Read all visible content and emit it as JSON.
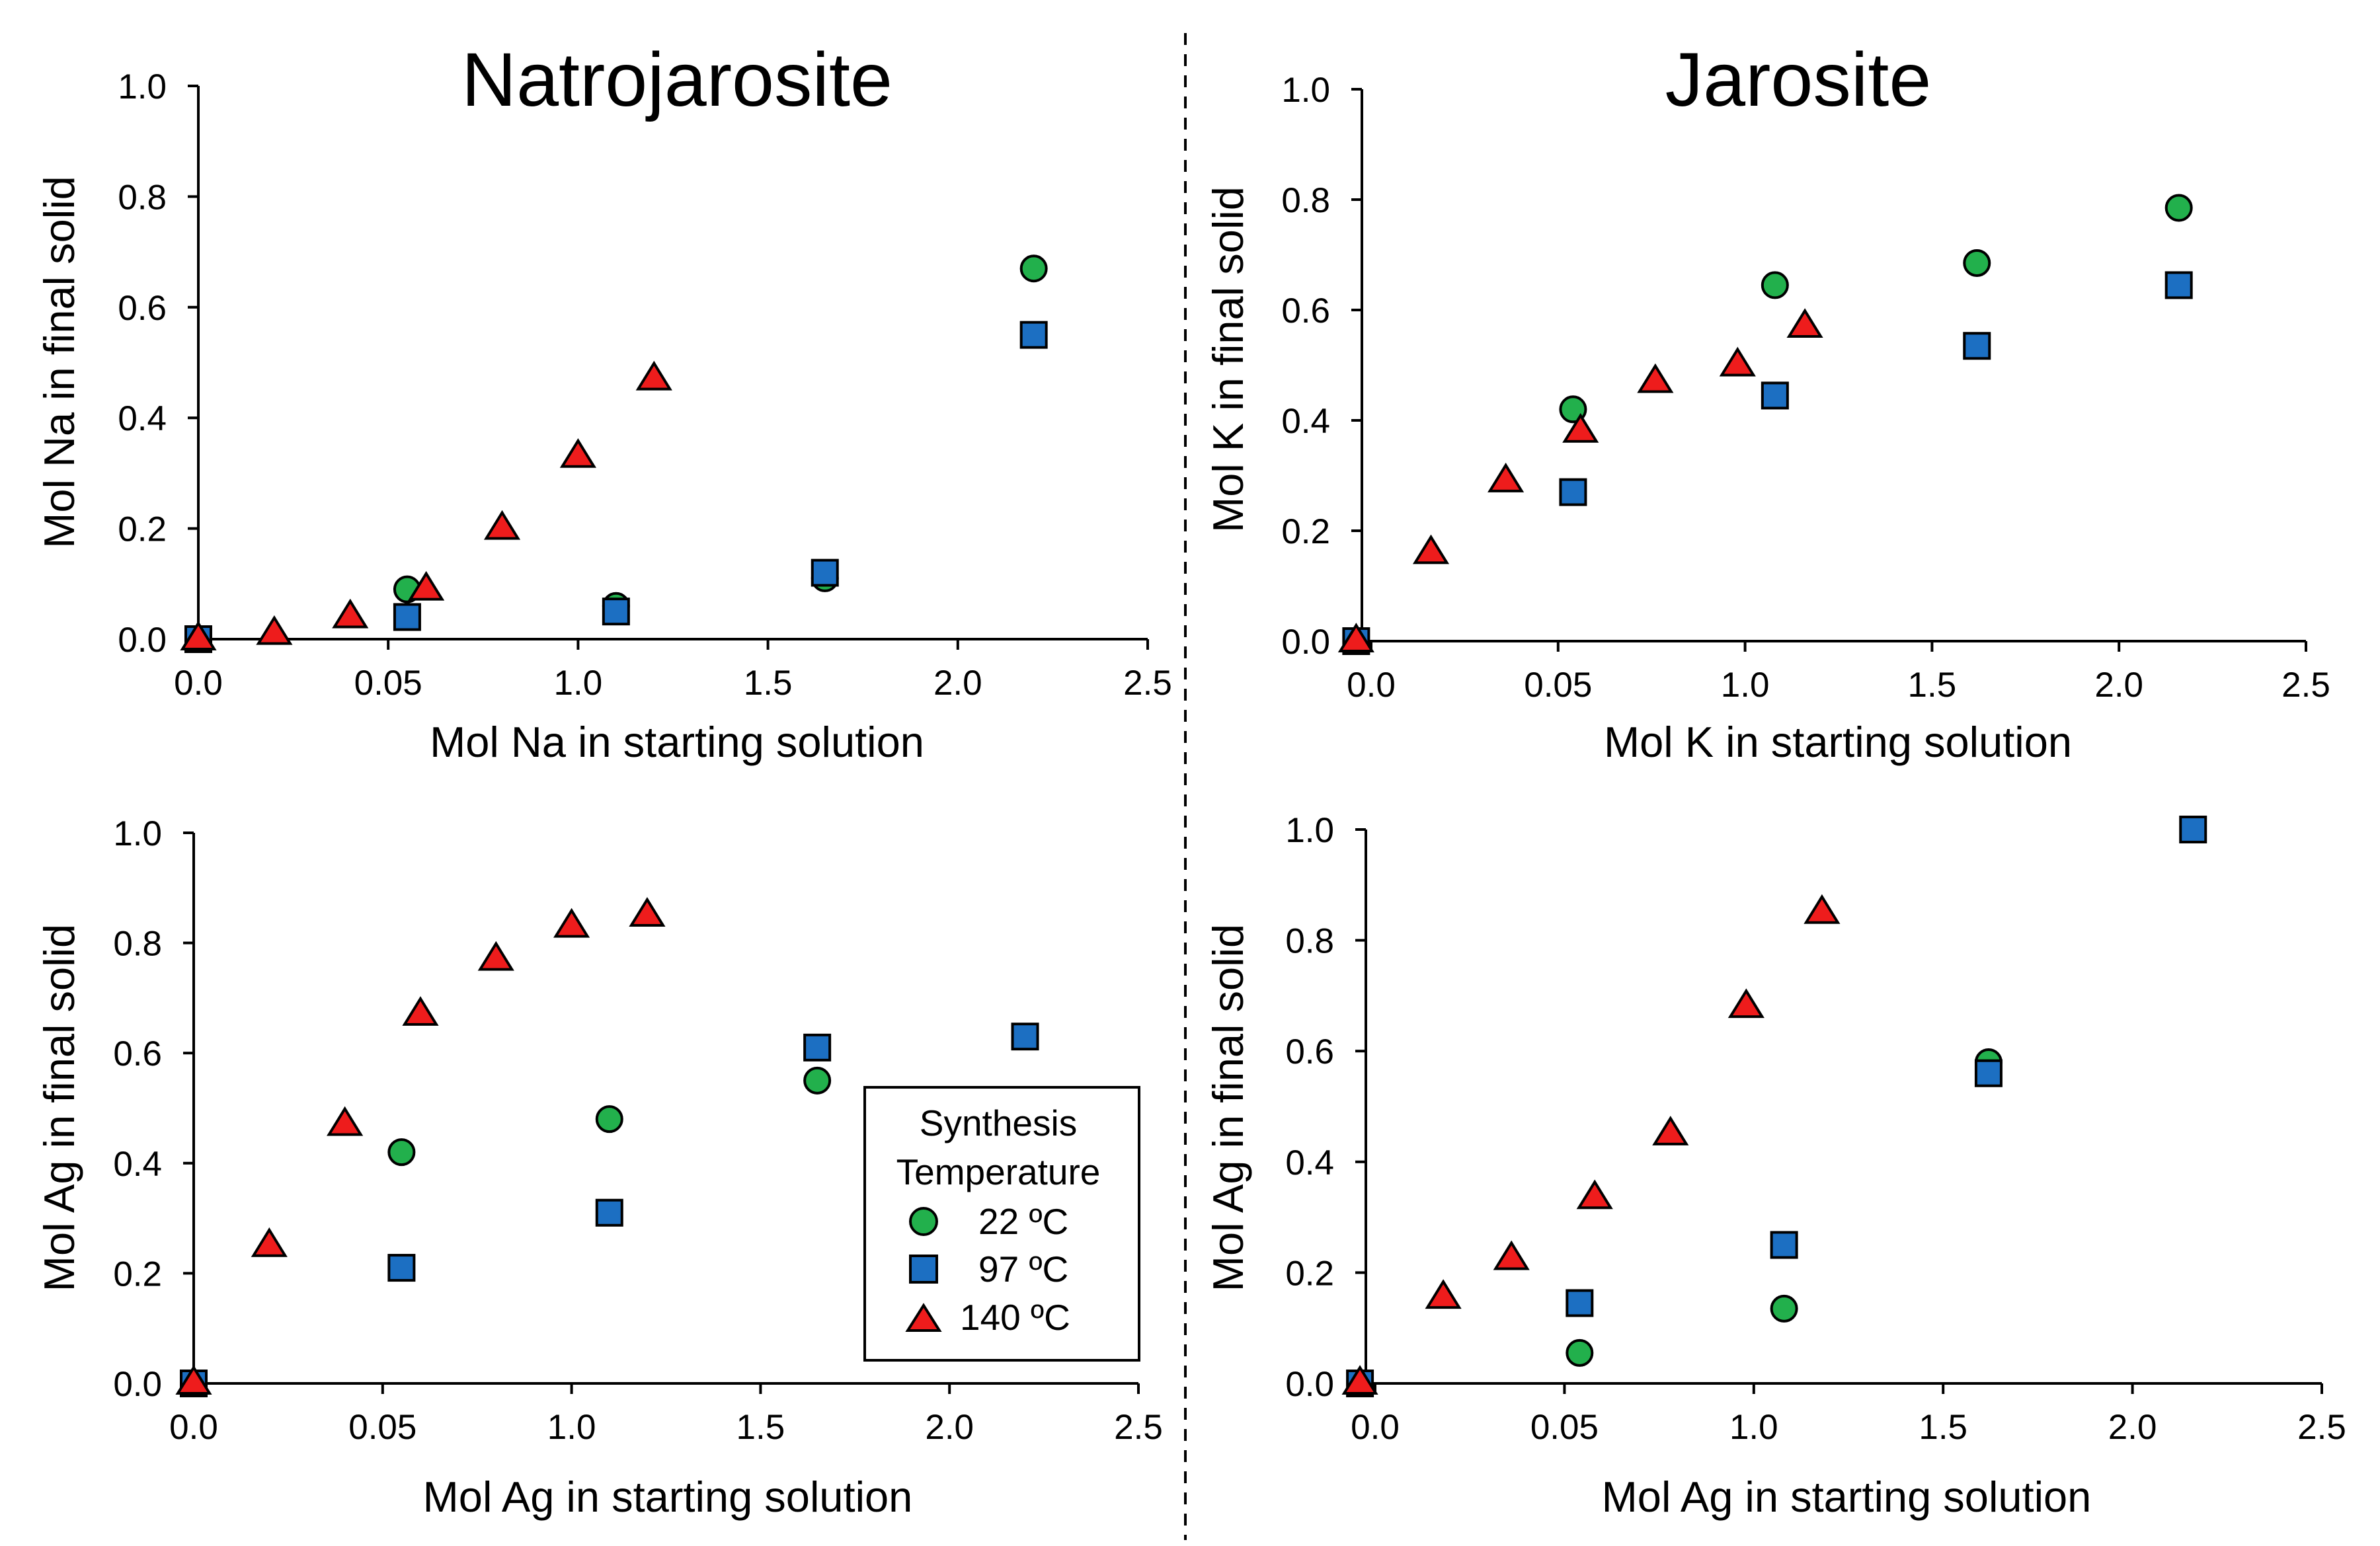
{
  "chart_data": [
    {
      "type": "scatter",
      "id": "tl",
      "title": "Natrojarosite",
      "xlabel": "Mol Na in starting solution",
      "ylabel": "Mol Na in final solid",
      "xticks": [
        "0.0",
        "0.05",
        "1.0",
        "1.5",
        "2.0",
        "2.5"
      ],
      "yticks": [
        "0.0",
        "0.2",
        "0.4",
        "0.6",
        "0.8",
        "1.0"
      ],
      "xlim": [
        0,
        2.5
      ],
      "ylim": [
        0,
        1.0
      ],
      "series": [
        {
          "name": "22 ºC",
          "marker": "circle",
          "color": "#22b04c",
          "x": [
            0.55,
            1.1,
            1.65,
            2.2
          ],
          "y": [
            0.09,
            0.06,
            0.11,
            0.67
          ]
        },
        {
          "name": "97 ºC",
          "marker": "square",
          "color": "#1c6fc2",
          "x": [
            0.0,
            0.55,
            1.1,
            1.65,
            2.2
          ],
          "y": [
            0.0,
            0.04,
            0.05,
            0.12,
            0.55
          ]
        },
        {
          "name": "140 ºC",
          "marker": "triangle",
          "color": "#ee1c1c",
          "x": [
            0.0,
            0.2,
            0.4,
            0.6,
            0.8,
            1.0,
            1.2
          ],
          "y": [
            0.0,
            0.01,
            0.04,
            0.09,
            0.2,
            0.33,
            0.47
          ]
        }
      ]
    },
    {
      "type": "scatter",
      "id": "tr",
      "title": "Jarosite",
      "xlabel": "Mol K in starting solution",
      "ylabel": "Mol K in final solid",
      "xticks": [
        "0.0",
        "0.05",
        "1.0",
        "1.5",
        "2.0",
        "2.5"
      ],
      "yticks": [
        "0.0",
        "0.2",
        "0.4",
        "0.6",
        "0.8",
        "1.0"
      ],
      "xlim": [
        0,
        2.5
      ],
      "ylim": [
        0,
        1.0
      ],
      "series": [
        {
          "name": "22 ºC",
          "marker": "circle",
          "color": "#22b04c",
          "x": [
            0.54,
            1.08,
            1.62,
            2.16
          ],
          "y": [
            0.42,
            0.645,
            0.685,
            0.785
          ]
        },
        {
          "name": "97 ºC",
          "marker": "square",
          "color": "#1c6fc2",
          "x": [
            -0.04,
            0.54,
            1.08,
            1.62,
            2.16
          ],
          "y": [
            0.0,
            0.27,
            0.445,
            0.535,
            0.645
          ]
        },
        {
          "name": "140 ºC",
          "marker": "triangle",
          "color": "#ee1c1c",
          "x": [
            -0.04,
            0.16,
            0.36,
            0.56,
            0.76,
            0.98,
            1.16
          ],
          "y": [
            0.0,
            0.16,
            0.29,
            0.38,
            0.47,
            0.5,
            0.57
          ]
        }
      ]
    },
    {
      "type": "scatter",
      "id": "bl",
      "title": "",
      "xlabel": "Mol Ag in starting solution",
      "ylabel": "Mol Ag in final solid",
      "xticks": [
        "0.0",
        "0.05",
        "1.0",
        "1.5",
        "2.0",
        "2.5"
      ],
      "yticks": [
        "0.0",
        "0.2",
        "0.4",
        "0.6",
        "0.8",
        "1.0"
      ],
      "xlim": [
        0,
        2.5
      ],
      "ylim": [
        0,
        1.0
      ],
      "series": [
        {
          "name": "22 ºC",
          "marker": "circle",
          "color": "#22b04c",
          "x": [
            0.55,
            1.1,
            1.65
          ],
          "y": [
            0.42,
            0.48,
            0.55
          ]
        },
        {
          "name": "97 ºC",
          "marker": "square",
          "color": "#1c6fc2",
          "x": [
            0.0,
            0.55,
            1.1,
            1.65,
            2.2
          ],
          "y": [
            0.0,
            0.21,
            0.31,
            0.61,
            0.63
          ]
        },
        {
          "name": "140 ºC",
          "marker": "triangle",
          "color": "#ee1c1c",
          "x": [
            0.0,
            0.2,
            0.4,
            0.6,
            0.8,
            1.0,
            1.2
          ],
          "y": [
            0.0,
            0.25,
            0.47,
            0.67,
            0.77,
            0.83,
            0.85
          ]
        }
      ],
      "legend": {
        "title_line1": "Synthesis",
        "title_line2": "Temperature",
        "placement": "bottom-right"
      }
    },
    {
      "type": "scatter",
      "id": "br",
      "title": "",
      "xlabel": "Mol Ag in starting solution",
      "ylabel": "Mol Ag in final solid",
      "xticks": [
        "0.0",
        "0.05",
        "1.0",
        "1.5",
        "2.0",
        "2.5"
      ],
      "yticks": [
        "0.0",
        "0.2",
        "0.4",
        "0.6",
        "0.8",
        "1.0"
      ],
      "xlim": [
        0,
        2.5
      ],
      "ylim": [
        0,
        1.0
      ],
      "series": [
        {
          "name": "22 ºC",
          "marker": "circle",
          "color": "#22b04c",
          "x": [
            0.54,
            1.08,
            1.62
          ],
          "y": [
            0.055,
            0.135,
            0.58
          ]
        },
        {
          "name": "97 ºC",
          "marker": "square",
          "color": "#1c6fc2",
          "x": [
            -0.04,
            0.54,
            1.08,
            1.62,
            2.16
          ],
          "y": [
            0.0,
            0.145,
            0.25,
            0.56,
            1.0
          ]
        },
        {
          "name": "140 ºC",
          "marker": "triangle",
          "color": "#ee1c1c",
          "x": [
            -0.04,
            0.18,
            0.36,
            0.58,
            0.78,
            0.98,
            1.18
          ],
          "y": [
            0.0,
            0.155,
            0.225,
            0.335,
            0.45,
            0.68,
            0.85
          ]
        }
      ]
    }
  ]
}
